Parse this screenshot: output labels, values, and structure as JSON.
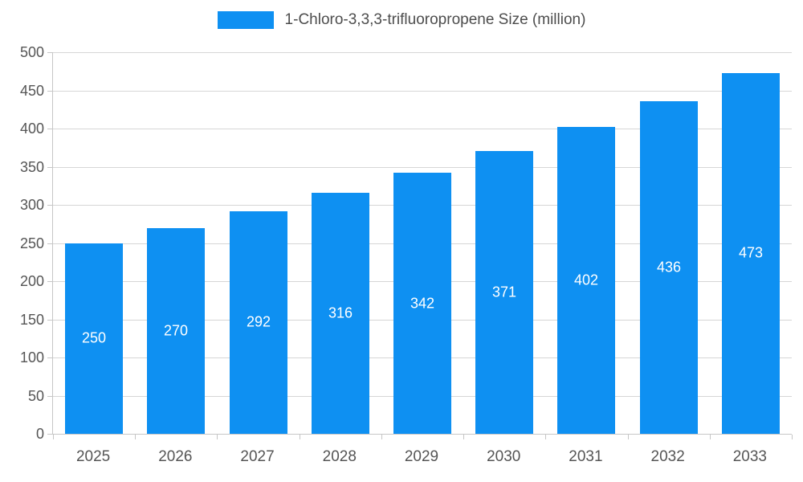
{
  "chart_data": {
    "type": "bar",
    "title": "1-Chloro-3,3,3-trifluoropropene Size (million)",
    "categories": [
      "2025",
      "2026",
      "2027",
      "2028",
      "2029",
      "2030",
      "2031",
      "2032",
      "2033"
    ],
    "values": [
      250,
      270,
      292,
      316,
      342,
      371,
      402,
      436,
      473
    ],
    "xlabel": "",
    "ylabel": "",
    "ylim": [
      0,
      500
    ],
    "ytick_step": 50,
    "ytick_labels": [
      "0",
      "50",
      "100",
      "150",
      "200",
      "250",
      "300",
      "350",
      "400",
      "450",
      "500"
    ],
    "grid": true,
    "legend_position": "top-center",
    "colors": {
      "bar": "#0e90f2",
      "bar_label_text": "#ffffff",
      "axis_text": "#555555",
      "grid_line": "#d6d6d6",
      "axis_line": "#c6c6c6",
      "title_text": "#4d4d4d"
    }
  }
}
